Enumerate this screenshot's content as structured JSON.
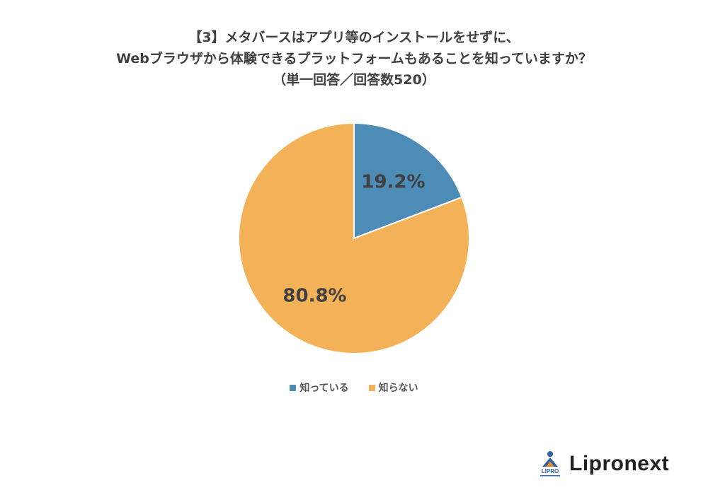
{
  "chart_data": {
    "type": "pie",
    "title_lines": [
      "【3】メタバースはアプリ等のインストールをせずに、",
      "Webブラウザから体験できるプラットフォームもあることを知っていますか？",
      "（単一回答／回答数520）"
    ],
    "categories": [
      "知っている",
      "知らない"
    ],
    "values": [
      19.2,
      80.8
    ],
    "labels": [
      "19.2%",
      "80.8%"
    ],
    "colors": [
      "#4e8cb8",
      "#f3b257"
    ],
    "legend_position": "bottom"
  },
  "brand": {
    "name": "Lipronext",
    "logo_text": "LIPRO",
    "logo_colors": [
      "#2b5fa8",
      "#e08a2a"
    ]
  }
}
